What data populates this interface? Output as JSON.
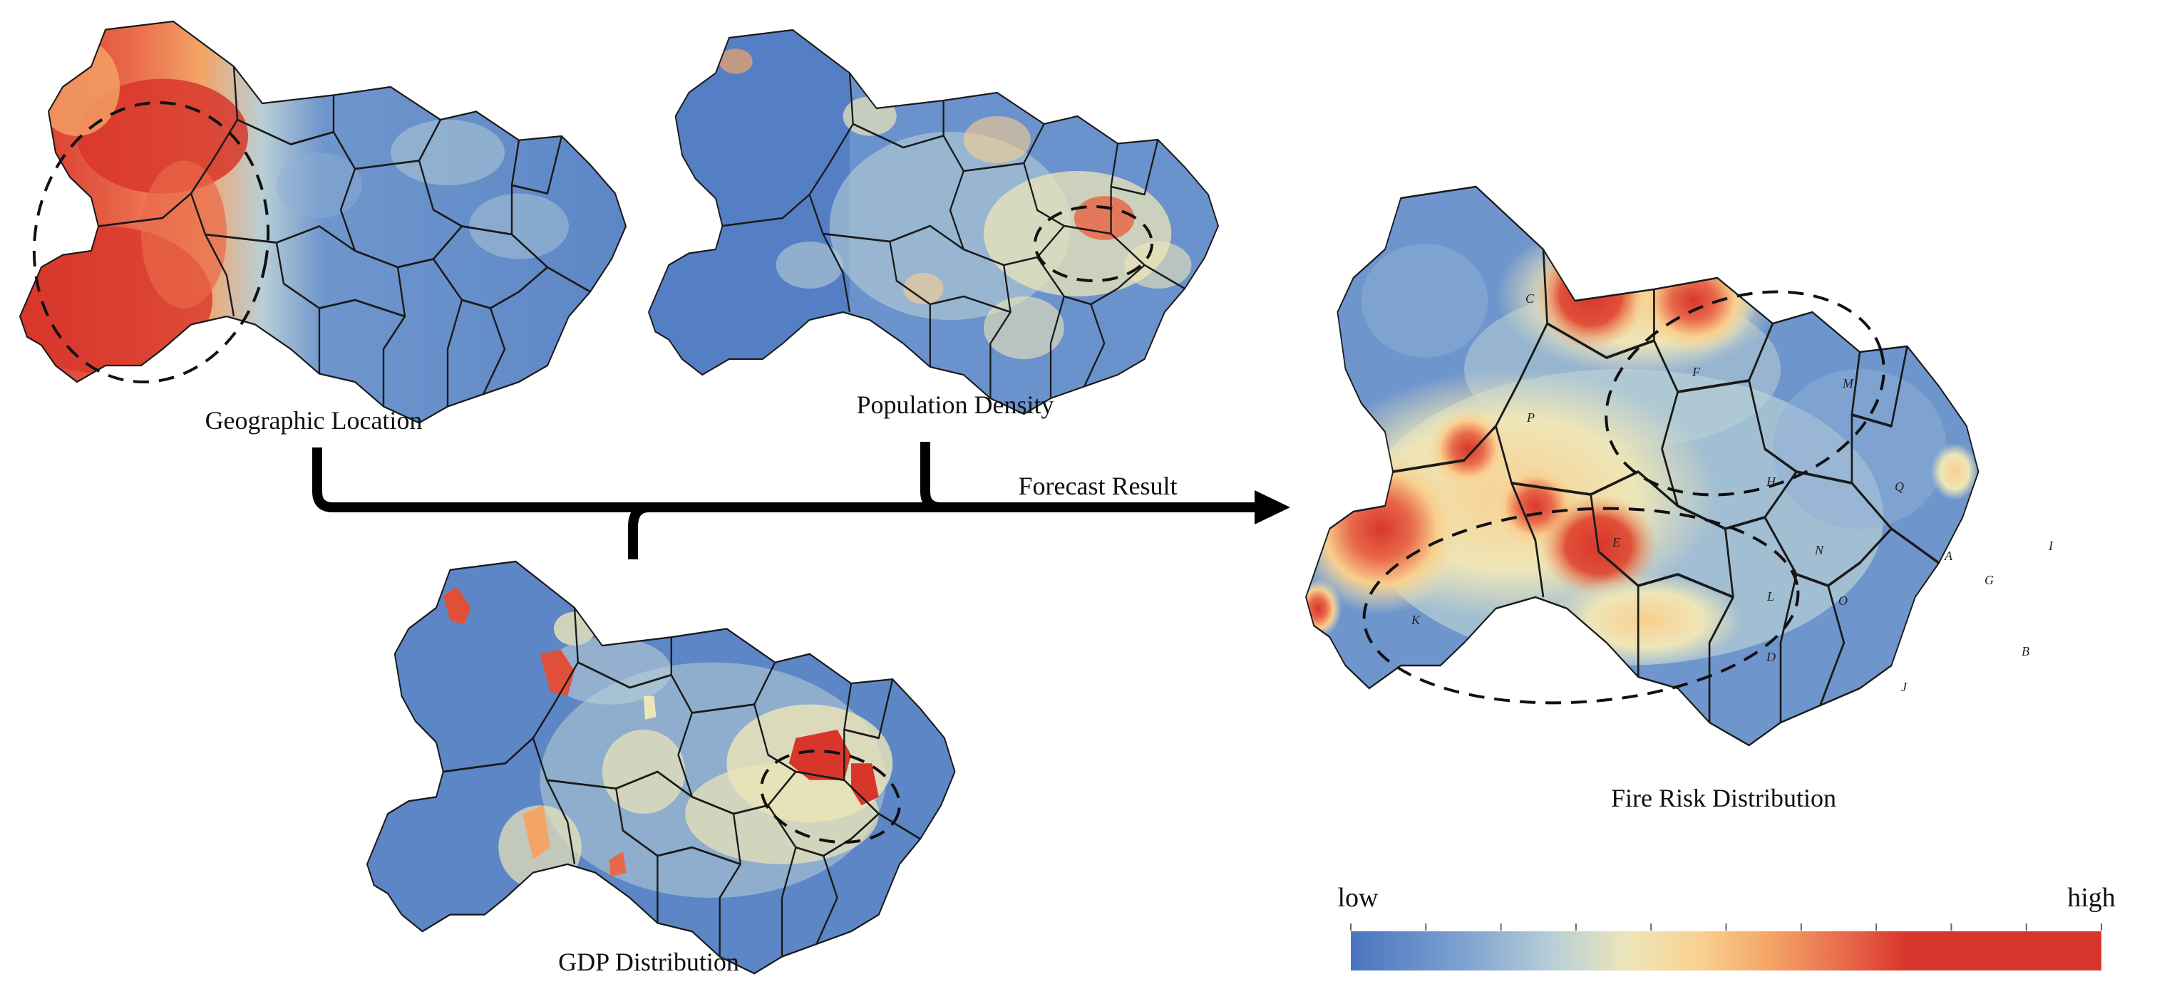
{
  "panels": {
    "geo": {
      "caption": "Geographic Location"
    },
    "pop": {
      "caption": "Population Density"
    },
    "gdp": {
      "caption": "GDP Distribution"
    },
    "fire": {
      "caption": "Fire Risk Distribution",
      "region_labels": [
        "C",
        "P",
        "F",
        "M",
        "H",
        "Q",
        "E",
        "N",
        "A",
        "I",
        "K",
        "L",
        "O",
        "G",
        "D",
        "B",
        "J"
      ]
    }
  },
  "arrow": {
    "label": "Forecast Result"
  },
  "legend": {
    "low_label": "low",
    "high_label": "high",
    "colors": [
      "#4a74c0",
      "#7ea2d0",
      "#b8cfd6",
      "#eee6b8",
      "#f9cf8e",
      "#f4a466",
      "#e8684a",
      "#d8362c",
      "#d8362c"
    ]
  },
  "colors": {
    "low": "#4a74c0",
    "mid": "#eee6b8",
    "high": "#d8362c",
    "border": "#1a1a1a",
    "arrow": "#000000"
  }
}
